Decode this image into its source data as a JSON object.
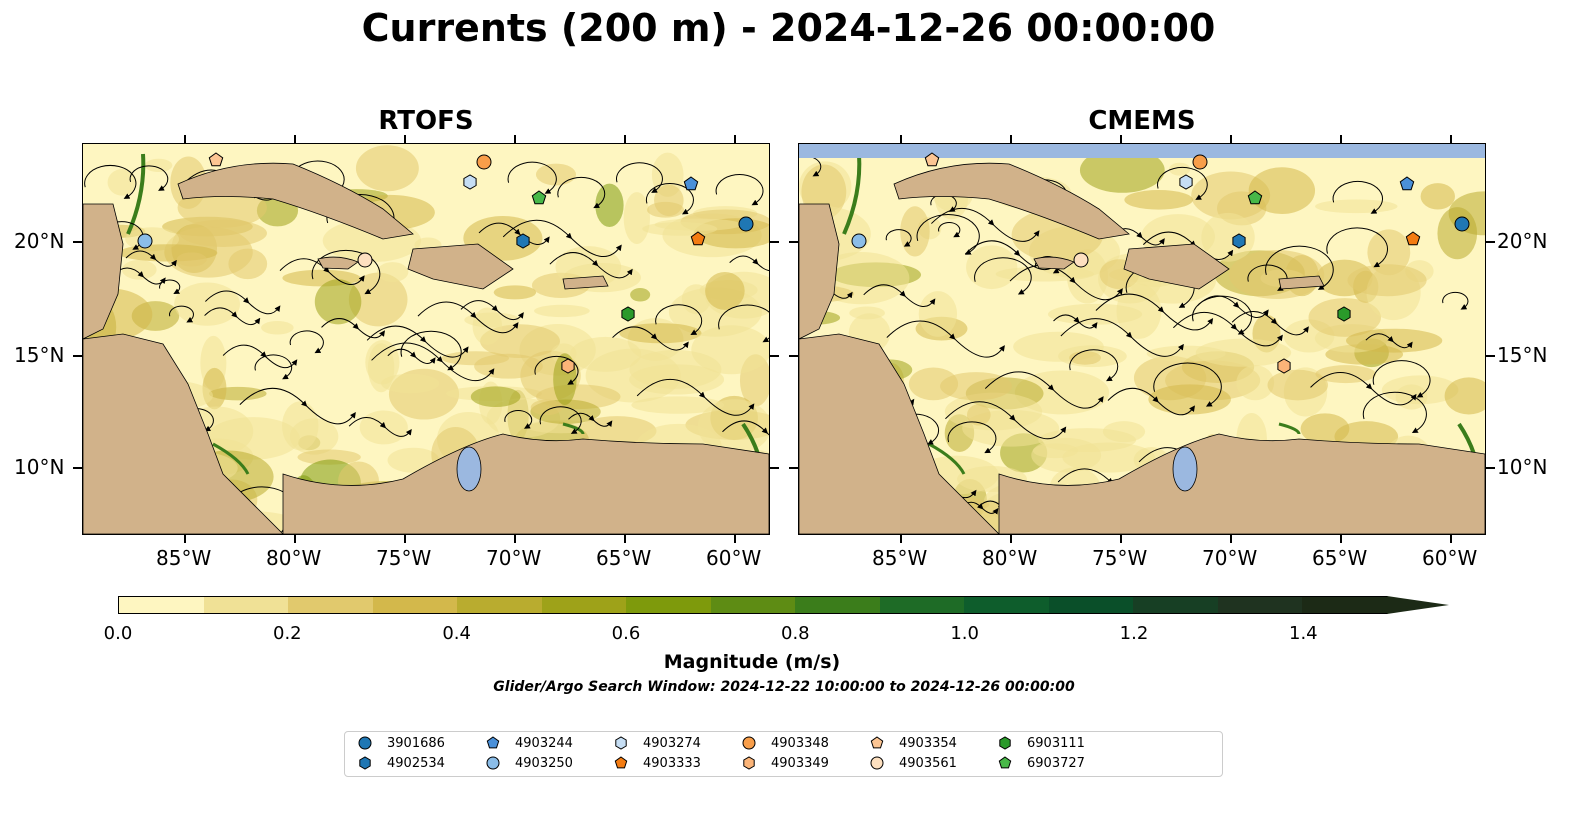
{
  "title": "Currents (200 m) - 2024-12-26 00:00:00",
  "panels": [
    {
      "title": "RTOFS"
    },
    {
      "title": "CMEMS"
    }
  ],
  "axes": {
    "x_ticks": [
      "85°W",
      "80°W",
      "75°W",
      "70°W",
      "65°W",
      "60°W"
    ],
    "y_ticks": [
      "20°N",
      "15°N",
      "10°N"
    ]
  },
  "colors": {
    "land": "#d1b28a",
    "ocean": "#9bb8e0",
    "background": "#ffffff",
    "scale": [
      "#fef6c1",
      "#f0e196",
      "#e1c96d",
      "#d3b84b",
      "#b9ac2f",
      "#9ea219",
      "#7e9a0c",
      "#5e8c14",
      "#3b7d1b",
      "#1e6b26",
      "#0e5d2c",
      "#0a4f29",
      "#173f24",
      "#1f3320",
      "#1c2a16"
    ]
  },
  "colorbar": {
    "label": "Magnitude (m/s)",
    "tick_labels": [
      "0.0",
      "0.2",
      "0.4",
      "0.6",
      "0.8",
      "1.0",
      "1.2",
      "1.4"
    ],
    "range": [
      0.0,
      1.5
    ],
    "extend": "max"
  },
  "search_window": "Glider/Argo Search Window: 2024-12-22 10:00:00 to 2024-12-26 00:00:00",
  "legend": {
    "items": [
      {
        "label": "3901686",
        "marker": "circle",
        "color": "#1f77b4"
      },
      {
        "label": "4902534",
        "marker": "hexagon",
        "color": "#1f77b4"
      },
      {
        "label": "4903244",
        "marker": "pentagon",
        "color": "#4a90d9"
      },
      {
        "label": "4903250",
        "marker": "circle",
        "color": "#8bbde8"
      },
      {
        "label": "4903274",
        "marker": "hexagon",
        "color": "#c6def4"
      },
      {
        "label": "4903333",
        "marker": "pentagon",
        "color": "#f47c12"
      },
      {
        "label": "4903348",
        "marker": "circle",
        "color": "#f89e4a"
      },
      {
        "label": "4903349",
        "marker": "hexagon",
        "color": "#fbb478"
      },
      {
        "label": "4903354",
        "marker": "pentagon",
        "color": "#fcc593"
      },
      {
        "label": "4903561",
        "marker": "circle",
        "color": "#fde0c0"
      },
      {
        "label": "6903111",
        "marker": "hexagon",
        "color": "#2a9a2a"
      },
      {
        "label": "6903727",
        "marker": "pentagon",
        "color": "#48b848"
      }
    ]
  }
}
